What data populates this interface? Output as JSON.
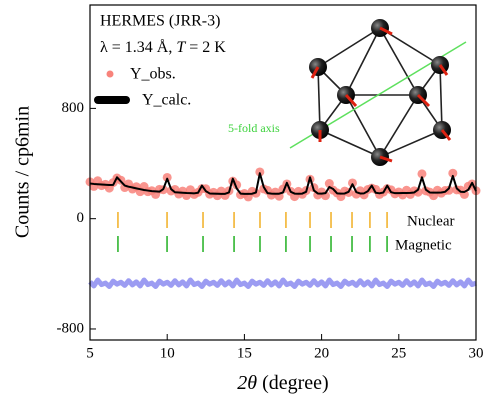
{
  "chart_data": {
    "type": "line",
    "y_label": "Counts / cp6min",
    "x_label": [
      "2θ",
      " (degree)"
    ],
    "annotations": [
      "HERMES (JRR-3)",
      "λ = 1.34 Å, ",
      "T",
      " = 2 K",
      "5-fold axis"
    ],
    "xlim": [
      5,
      30
    ],
    "xticks": [
      5,
      10,
      15,
      20,
      25,
      30
    ],
    "ylim": [
      -880,
      1550
    ],
    "yticks": [
      -800,
      0,
      800
    ],
    "x": [
      5,
      5.25,
      5.5,
      5.75,
      6,
      6.25,
      6.5,
      6.75,
      7,
      7.25,
      7.5,
      7.75,
      8,
      8.25,
      8.5,
      8.75,
      9,
      9.25,
      9.5,
      9.75,
      10,
      10.25,
      10.5,
      10.75,
      11,
      11.25,
      11.5,
      11.75,
      12,
      12.25,
      12.5,
      12.75,
      13,
      13.25,
      13.5,
      13.75,
      14,
      14.25,
      14.5,
      14.75,
      15,
      15.25,
      15.5,
      15.75,
      16,
      16.25,
      16.5,
      16.75,
      17,
      17.25,
      17.5,
      17.75,
      18,
      18.25,
      18.5,
      18.75,
      19,
      19.25,
      19.5,
      19.75,
      20,
      20.25,
      20.5,
      20.75,
      21,
      21.25,
      21.5,
      21.75,
      22,
      22.25,
      22.5,
      22.75,
      23,
      23.25,
      23.5,
      23.75,
      24,
      24.25,
      24.5,
      24.75,
      25,
      25.25,
      25.5,
      25.75,
      26,
      26.25,
      26.5,
      26.75,
      27,
      27.25,
      27.5,
      27.75,
      28,
      28.25,
      28.5,
      28.75,
      29,
      29.25,
      29.5,
      29.75,
      30
    ],
    "series": [
      {
        "name": "Y_obs.",
        "color": "#f8837b",
        "style": "scatter",
        "values": [
          267,
          234,
          275,
          240,
          249,
          222,
          262,
          295,
          279,
          226,
          252,
          215,
          232,
          196,
          233,
          196,
          203,
          176,
          213,
          210,
          299,
          201,
          212,
          179,
          200,
          168,
          210,
          176,
          191,
          218,
          217,
          178,
          191,
          167,
          200,
          169,
          202,
          272,
          245,
          174,
          183,
          158,
          198,
          185,
          339,
          216,
          205,
          171,
          193,
          163,
          215,
          252,
          198,
          160,
          198,
          177,
          204,
          286,
          225,
          172,
          194,
          167,
          255,
          207,
          187,
          160,
          200,
          190,
          259,
          178,
          203,
          173,
          212,
          222,
          213,
          176,
          193,
          218,
          209,
          180,
          194,
          172,
          206,
          176,
          202,
          192,
          325,
          202,
          193,
          167,
          206,
          185,
          204,
          206,
          330,
          209,
          207,
          176,
          235,
          252,
          203
        ]
      },
      {
        "name": "Y_calc.",
        "color": "#000000",
        "style": "line",
        "values": [
          255,
          252,
          250,
          248,
          246,
          244,
          245,
          300,
          270,
          240,
          232,
          226,
          220,
          214,
          208,
          204,
          200,
          198,
          196,
          215,
          290,
          215,
          192,
          190,
          188,
          186,
          185,
          184,
          188,
          240,
          200,
          183,
          182,
          181,
          180,
          180,
          190,
          290,
          220,
          182,
          180,
          180,
          181,
          190,
          330,
          230,
          185,
          182,
          181,
          181,
          190,
          260,
          195,
          182,
          181,
          182,
          195,
          300,
          205,
          183,
          182,
          185,
          230,
          215,
          184,
          182,
          183,
          195,
          250,
          192,
          183,
          184,
          200,
          240,
          188,
          184,
          190,
          240,
          192,
          185,
          185,
          186,
          186,
          187,
          190,
          210,
          300,
          210,
          190,
          189,
          189,
          190,
          195,
          220,
          310,
          220,
          195,
          194,
          210,
          260,
          200
        ]
      },
      {
        "color": "#9c9cf2",
        "style": "band",
        "values": [
          -458,
          -488,
          -445,
          -478,
          -467,
          -492,
          -453,
          -475,
          -461,
          -484,
          -450,
          -481,
          -458,
          -488,
          -445,
          -478,
          -467,
          -492,
          -453,
          -475,
          -461,
          -484,
          -450,
          -481,
          -458,
          -488,
          -445,
          -478,
          -467,
          -492,
          -453,
          -475,
          -461,
          -484,
          -450,
          -481,
          -458,
          -488,
          -445,
          -478,
          -467,
          -492,
          -453,
          -475,
          -461,
          -484,
          -450,
          -481,
          -458,
          -488,
          -445,
          -478,
          -467,
          -492,
          -453,
          -475,
          -461,
          -484,
          -450,
          -481,
          -458,
          -488,
          -445,
          -478,
          -467,
          -492,
          -453,
          -475,
          -461,
          -484,
          -450,
          -481,
          -458,
          -488,
          -445,
          -478,
          -467,
          -492,
          -453,
          -475,
          -461,
          -484,
          -450,
          -481,
          -458,
          -488,
          -445,
          -478,
          -467,
          -492,
          -453,
          -475,
          -461,
          -484,
          -450,
          -481,
          -458,
          -488,
          -445,
          -478,
          -467
        ]
      }
    ],
    "reflections": [
      {
        "name": "Nuclear",
        "color": "#f2b431",
        "positions": [
          6.81,
          9.99,
          12.32,
          14.33,
          16.01,
          17.69,
          19.25,
          20.61,
          21.97,
          23.13,
          24.24
        ]
      },
      {
        "name": "Magnetic",
        "color": "#2fb52f",
        "positions": [
          6.81,
          9.99,
          12.32,
          14.33,
          16.01,
          17.69,
          19.25,
          20.61,
          21.97,
          23.13,
          24.24
        ]
      }
    ]
  }
}
